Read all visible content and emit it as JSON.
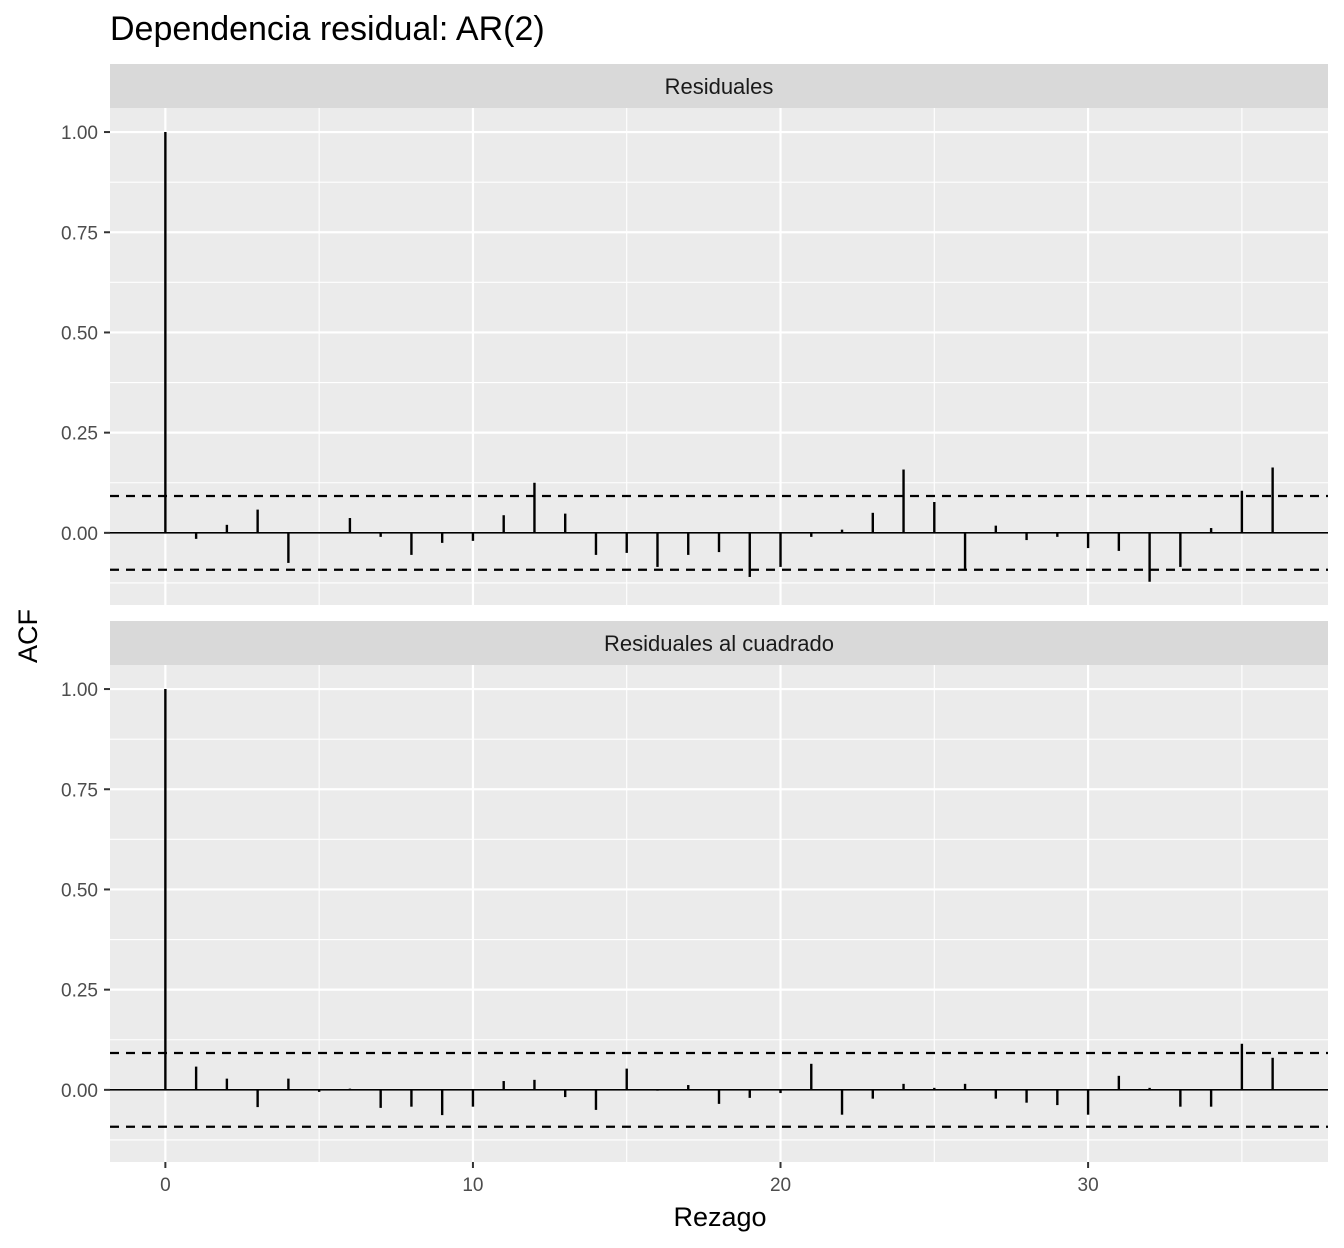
{
  "chart_data": {
    "type": "bar",
    "title": "Dependencia residual: AR(2)",
    "xlabel": "Rezago",
    "ylabel": "ACF",
    "xlim": [
      -1.8,
      37.8
    ],
    "ylim": [
      -0.18,
      1.06
    ],
    "x_ticks": [
      0,
      10,
      20,
      30
    ],
    "x_tick_labels": [
      "0",
      "10",
      "20",
      "30"
    ],
    "y_ticks": [
      0,
      0.25,
      0.5,
      0.75,
      1.0
    ],
    "y_tick_labels": [
      "0.00",
      "0.25",
      "0.50",
      "0.75",
      "1.00"
    ],
    "grid": true,
    "confidence_band": 0.092,
    "x": [
      0,
      1,
      2,
      3,
      4,
      5,
      6,
      7,
      8,
      9,
      10,
      11,
      12,
      13,
      14,
      15,
      16,
      17,
      18,
      19,
      20,
      21,
      22,
      23,
      24,
      25,
      26,
      27,
      28,
      29,
      30,
      31,
      32,
      33,
      34,
      35,
      36
    ],
    "panels": [
      {
        "name": "Residuales",
        "values": [
          1.0,
          -0.015,
          0.02,
          0.058,
          -0.075,
          0.0,
          0.037,
          -0.01,
          -0.055,
          -0.025,
          -0.02,
          0.044,
          0.125,
          0.048,
          -0.055,
          -0.05,
          -0.085,
          -0.055,
          -0.048,
          -0.11,
          -0.085,
          -0.01,
          0.008,
          0.05,
          0.158,
          0.077,
          -0.09,
          0.018,
          -0.018,
          -0.01,
          -0.038,
          -0.045,
          -0.122,
          -0.085,
          0.012,
          0.105,
          0.163
        ]
      },
      {
        "name": "Residuales al cuadrado",
        "values": [
          1.0,
          0.058,
          0.028,
          -0.043,
          0.028,
          -0.005,
          0.003,
          -0.045,
          -0.042,
          -0.063,
          -0.042,
          0.022,
          0.025,
          -0.018,
          -0.05,
          0.053,
          -0.002,
          0.012,
          -0.035,
          -0.02,
          -0.008,
          0.065,
          -0.062,
          -0.022,
          0.015,
          0.005,
          0.015,
          -0.022,
          -0.032,
          -0.038,
          -0.062,
          0.035,
          0.005,
          -0.042,
          -0.042,
          0.115,
          0.08
        ]
      }
    ]
  }
}
